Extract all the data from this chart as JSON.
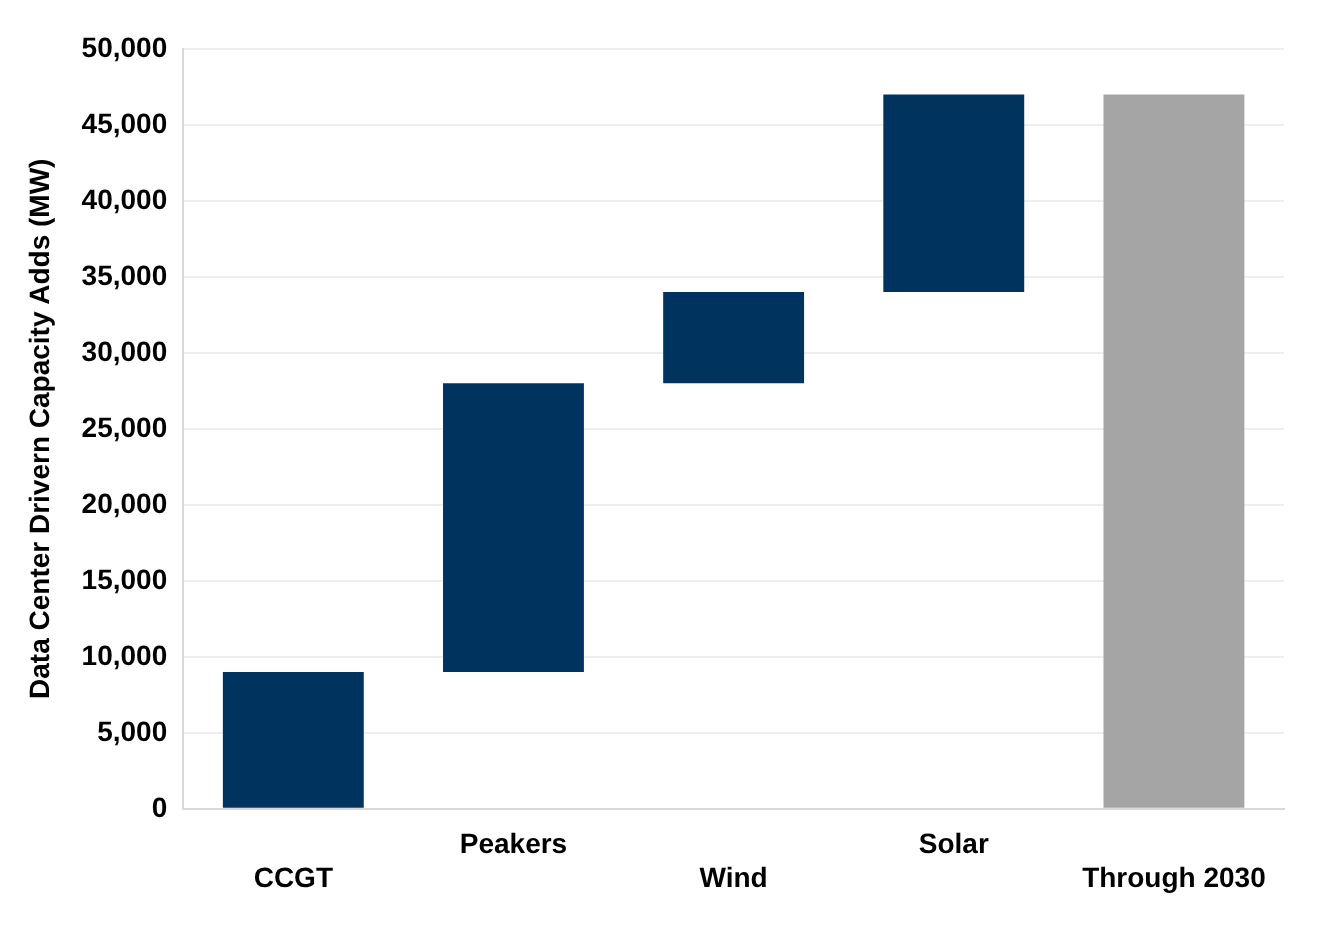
{
  "chart_data": {
    "type": "bar",
    "ylabel": "Data Center Drivern Capacity Adds (MW)",
    "categories": [
      "CCGT",
      "Peakers",
      "Wind",
      "Solar",
      "Through 2030"
    ],
    "values": [
      9000,
      19000,
      6000,
      13000,
      47000
    ],
    "base": [
      0,
      9000,
      28000,
      34000,
      0
    ],
    "colors": [
      "#00335e",
      "#00335e",
      "#00335e",
      "#00335e",
      "#a5a5a5"
    ],
    "ylim": [
      0,
      50000
    ],
    "yticks": [
      0,
      {
        "value": 5000,
        "label": "5,000"
      },
      {
        "value": 10000,
        "label": "10,000"
      },
      {
        "value": 15000,
        "label": "15,000"
      },
      {
        "value": 20000,
        "label": "20,000"
      },
      {
        "value": 25000,
        "label": "25,000"
      },
      {
        "value": 30000,
        "label": "30,000"
      },
      {
        "value": 35000,
        "label": "35,000"
      },
      {
        "value": 40000,
        "label": "40,000"
      },
      {
        "value": 45000,
        "label": "45,000"
      },
      {
        "value": 50000,
        "label": "50,000"
      }
    ],
    "grid": "y",
    "legend": false
  }
}
